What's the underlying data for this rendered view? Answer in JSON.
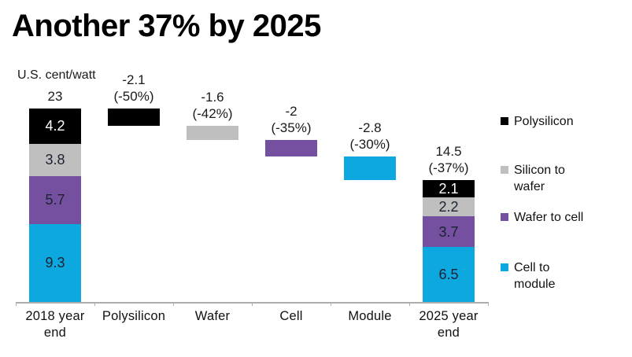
{
  "page": {
    "title": "Another 37% by 2025",
    "unit_label": "U.S. cent/watt"
  },
  "colors": {
    "polysilicon": "#000000",
    "silicon_to_wafer": "#BFBFBF",
    "wafer_to_cell": "#7550A0",
    "cell_to_module": "#0DA8E0",
    "axis": "#ADADAD",
    "label_dark": "#1B2230",
    "label_light": "#FFFFFF"
  },
  "chart_data": {
    "type": "bar",
    "subtype": "waterfall-stacked",
    "title": "Another 37% by 2025",
    "ylabel": "U.S. cent/watt",
    "ylim": [
      0,
      23
    ],
    "grid": false,
    "legend_position": "right",
    "categories": [
      "2018 year\nend",
      "Polysilicon",
      "Wafer",
      "Cell",
      "Module",
      "2025 year\nend"
    ],
    "columns": [
      {
        "kind": "stacked",
        "category": "2018 year end",
        "total": 23,
        "total_label": "23",
        "segments": [
          {
            "series": "Polysilicon",
            "color": "polysilicon",
            "value": 4.2,
            "label": "4.2",
            "label_style": "light"
          },
          {
            "series": "Silicon to wafer",
            "color": "silicon_to_wafer",
            "value": 3.8,
            "label": "3.8",
            "label_style": "dark"
          },
          {
            "series": "Wafer to cell",
            "color": "wafer_to_cell",
            "value": 5.7,
            "label": "5.7",
            "label_style": "dark"
          },
          {
            "series": "Cell to module",
            "color": "cell_to_module",
            "value": 9.3,
            "label": "9.3",
            "label_style": "dark"
          }
        ]
      },
      {
        "kind": "float",
        "category": "Polysilicon",
        "color": "polysilicon",
        "value": -2.1,
        "label": "-2.1\n(-50%)"
      },
      {
        "kind": "float",
        "category": "Wafer",
        "color": "silicon_to_wafer",
        "value": -1.6,
        "label": "-1.6\n(-42%)"
      },
      {
        "kind": "float",
        "category": "Cell",
        "color": "wafer_to_cell",
        "value": -2,
        "label": "-2\n(-35%)"
      },
      {
        "kind": "float",
        "category": "Module",
        "color": "cell_to_module",
        "value": -2.8,
        "label": "-2.8\n(-30%)"
      },
      {
        "kind": "stacked",
        "category": "2025 year end",
        "total": 14.5,
        "total_label": "14.5\n(-37%)",
        "segments": [
          {
            "series": "Polysilicon",
            "color": "polysilicon",
            "value": 2.1,
            "label": "2.1",
            "label_style": "light"
          },
          {
            "series": "Silicon to wafer",
            "color": "silicon_to_wafer",
            "value": 2.2,
            "label": "2.2",
            "label_style": "dark"
          },
          {
            "series": "Wafer to cell",
            "color": "wafer_to_cell",
            "value": 3.7,
            "label": "3.7",
            "label_style": "dark"
          },
          {
            "series": "Cell to module",
            "color": "cell_to_module",
            "value": 6.5,
            "label": "6.5",
            "label_style": "dark"
          }
        ]
      }
    ],
    "legend": [
      {
        "label": "Polysilicon",
        "color": "polysilicon"
      },
      {
        "label": "Silicon to\nwafer",
        "color": "silicon_to_wafer"
      },
      {
        "label": "Wafer to cell",
        "color": "wafer_to_cell"
      },
      {
        "label": "Cell to\nmodule",
        "color": "cell_to_module"
      }
    ]
  }
}
